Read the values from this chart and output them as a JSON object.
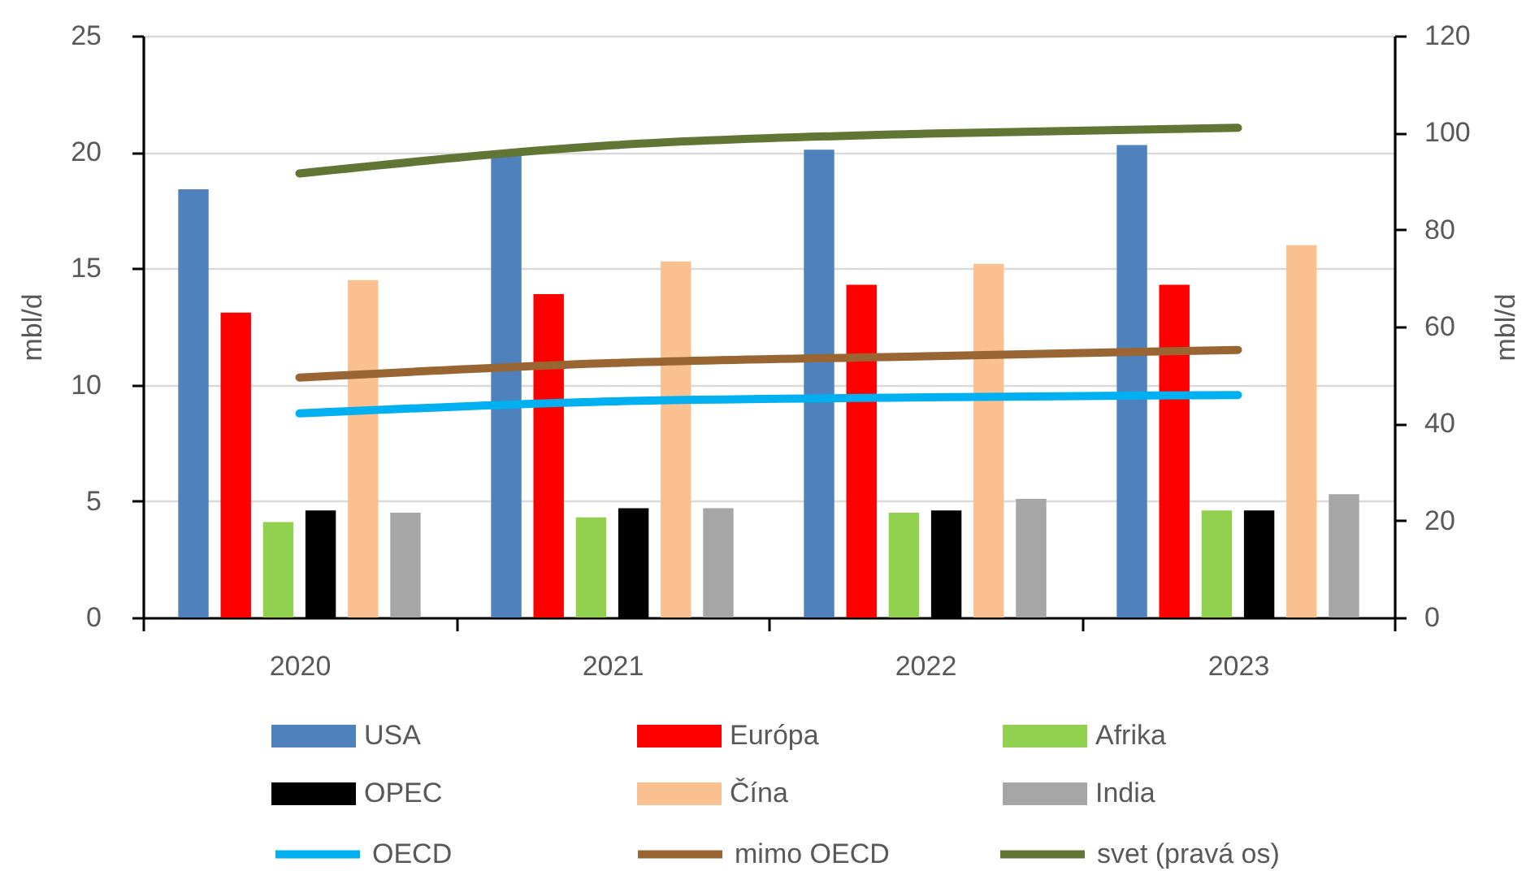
{
  "chart_data": {
    "type": "bar",
    "ylabel": "mbl/d",
    "y2label": "mbl/d",
    "categories": [
      "2020",
      "2021",
      "2022",
      "2023"
    ],
    "series": [
      {
        "name": "USA",
        "color": "#4f81bd",
        "values": [
          18.4,
          20.0,
          20.1,
          20.3
        ]
      },
      {
        "name": "Európa",
        "color": "#ff0000",
        "values": [
          13.1,
          13.9,
          14.3,
          14.3
        ]
      },
      {
        "name": "Afrika",
        "color": "#92d050",
        "values": [
          4.1,
          4.3,
          4.5,
          4.6
        ]
      },
      {
        "name": "OPEC",
        "color": "#000000",
        "values": [
          4.6,
          4.7,
          4.6,
          4.6
        ]
      },
      {
        "name": "Čína",
        "color": "#fac090",
        "values": [
          14.5,
          15.3,
          15.2,
          16.0
        ]
      },
      {
        "name": "India",
        "color": "#a6a6a6",
        "values": [
          4.5,
          4.7,
          5.1,
          5.3
        ]
      },
      {
        "name": "OECD",
        "type": "line",
        "axis": "y2",
        "color": "#00b0f0",
        "values": [
          42.1,
          44.6,
          45.4,
          45.9
        ]
      },
      {
        "name": "mimo OECD",
        "type": "line",
        "axis": "y2",
        "color": "#996633",
        "values": [
          49.5,
          52.5,
          53.9,
          55.2
        ]
      },
      {
        "name": "svet (pravá os)",
        "type": "line",
        "axis": "y2",
        "color": "#617534",
        "values": [
          91.6,
          97.4,
          99.8,
          101.0
        ]
      }
    ],
    "ylim": [
      0,
      25
    ],
    "yticks": [
      0,
      5,
      10,
      15,
      20,
      25
    ],
    "y2lim": [
      0,
      120
    ],
    "y2ticks": [
      0,
      20,
      40,
      60,
      80,
      100,
      120
    ],
    "grid": "y",
    "legend": "bottom"
  }
}
